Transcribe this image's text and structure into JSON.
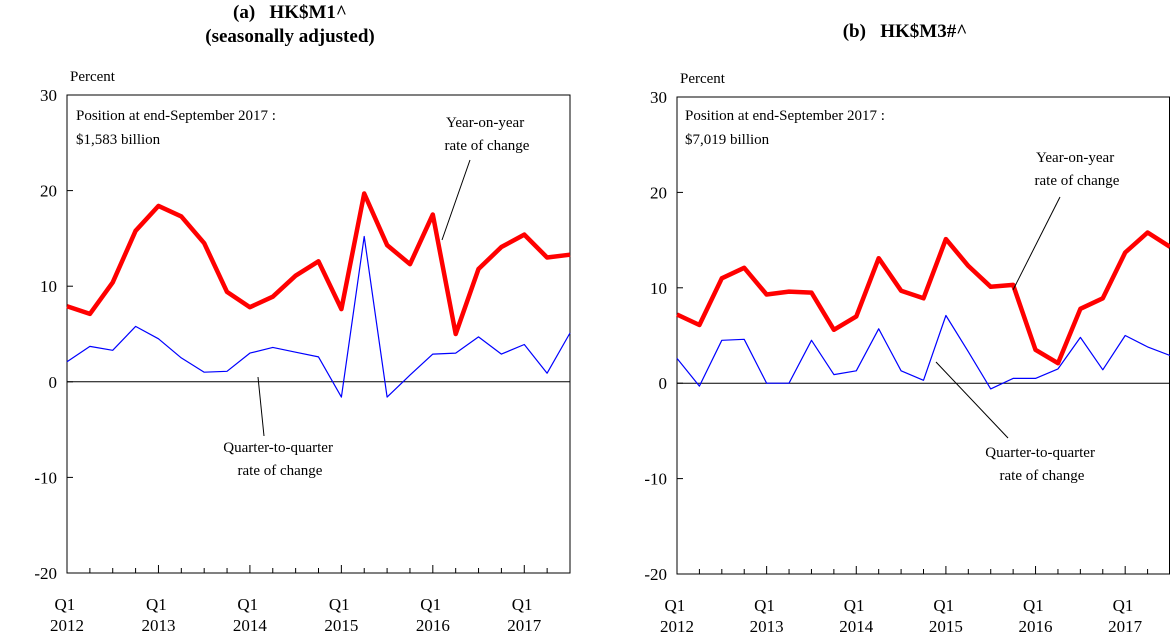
{
  "chart_data": [
    {
      "type": "line",
      "title": "(a)   HK$M1^",
      "subtitle": "(seasonally adjusted)",
      "y_label": "Percent",
      "annotations": [
        "Position at end-September 2017 :",
        "$1,583 billion"
      ],
      "categories": [
        "Q1 2012",
        null,
        null,
        null,
        "Q1 2013",
        null,
        null,
        null,
        "Q1 2014",
        null,
        null,
        null,
        "Q1 2015",
        null,
        null,
        null,
        "Q1 2016",
        null,
        null,
        null,
        "Q1 2017",
        null,
        null
      ],
      "series": [
        {
          "name": "Year-on-year rate of change",
          "color": "#ff0000",
          "values": [
            7.9,
            7.1,
            10.4,
            15.8,
            18.4,
            17.3,
            14.5,
            9.4,
            7.8,
            8.9,
            11.1,
            12.6,
            7.6,
            19.7,
            14.3,
            12.3,
            17.5,
            5.0,
            11.8,
            14.1,
            15.4,
            13.0,
            13.3
          ]
        },
        {
          "name": "Quarter-to-quarter rate of change",
          "color": "#0000ff",
          "values": [
            2.1,
            3.7,
            3.3,
            5.8,
            4.5,
            2.5,
            1.0,
            1.1,
            3.0,
            3.6,
            3.1,
            2.6,
            -1.6,
            15.2,
            -1.6,
            0.7,
            2.9,
            3.0,
            4.7,
            2.9,
            3.9,
            0.9,
            5.1
          ]
        }
      ],
      "ylim": [
        -20,
        30
      ],
      "yticks": [
        -20,
        -10,
        0,
        10,
        20,
        30
      ]
    },
    {
      "type": "line",
      "title": "(b)   HK$M3#^",
      "y_label": "Percent",
      "annotations": [
        "Position at end-September 2017 :",
        "$7,019 billion"
      ],
      "categories": [
        "Q1 2012",
        null,
        null,
        null,
        "Q1 2013",
        null,
        null,
        null,
        "Q1 2014",
        null,
        null,
        null,
        "Q1 2015",
        null,
        null,
        null,
        "Q1 2016",
        null,
        null,
        null,
        "Q1 2017",
        null,
        null
      ],
      "series": [
        {
          "name": "Year-on-year rate of change",
          "color": "#ff0000",
          "values": [
            7.2,
            6.1,
            11.0,
            12.1,
            9.3,
            9.6,
            9.5,
            5.6,
            7.0,
            13.1,
            9.7,
            8.9,
            15.1,
            12.3,
            10.1,
            10.3,
            3.5,
            2.1,
            7.8,
            8.9,
            13.7,
            15.8,
            14.3
          ]
        },
        {
          "name": "Quarter-to-quarter rate of change",
          "color": "#0000ff",
          "values": [
            2.6,
            -0.3,
            4.5,
            4.6,
            0.0,
            0.0,
            4.5,
            0.9,
            1.3,
            5.7,
            1.3,
            0.3,
            7.1,
            3.3,
            -0.6,
            0.5,
            0.5,
            1.5,
            4.8,
            1.4,
            5.0,
            3.8,
            2.9
          ]
        }
      ],
      "ylim": [
        -20,
        30
      ],
      "yticks": [
        -20,
        -10,
        0,
        10,
        20,
        30
      ]
    }
  ]
}
